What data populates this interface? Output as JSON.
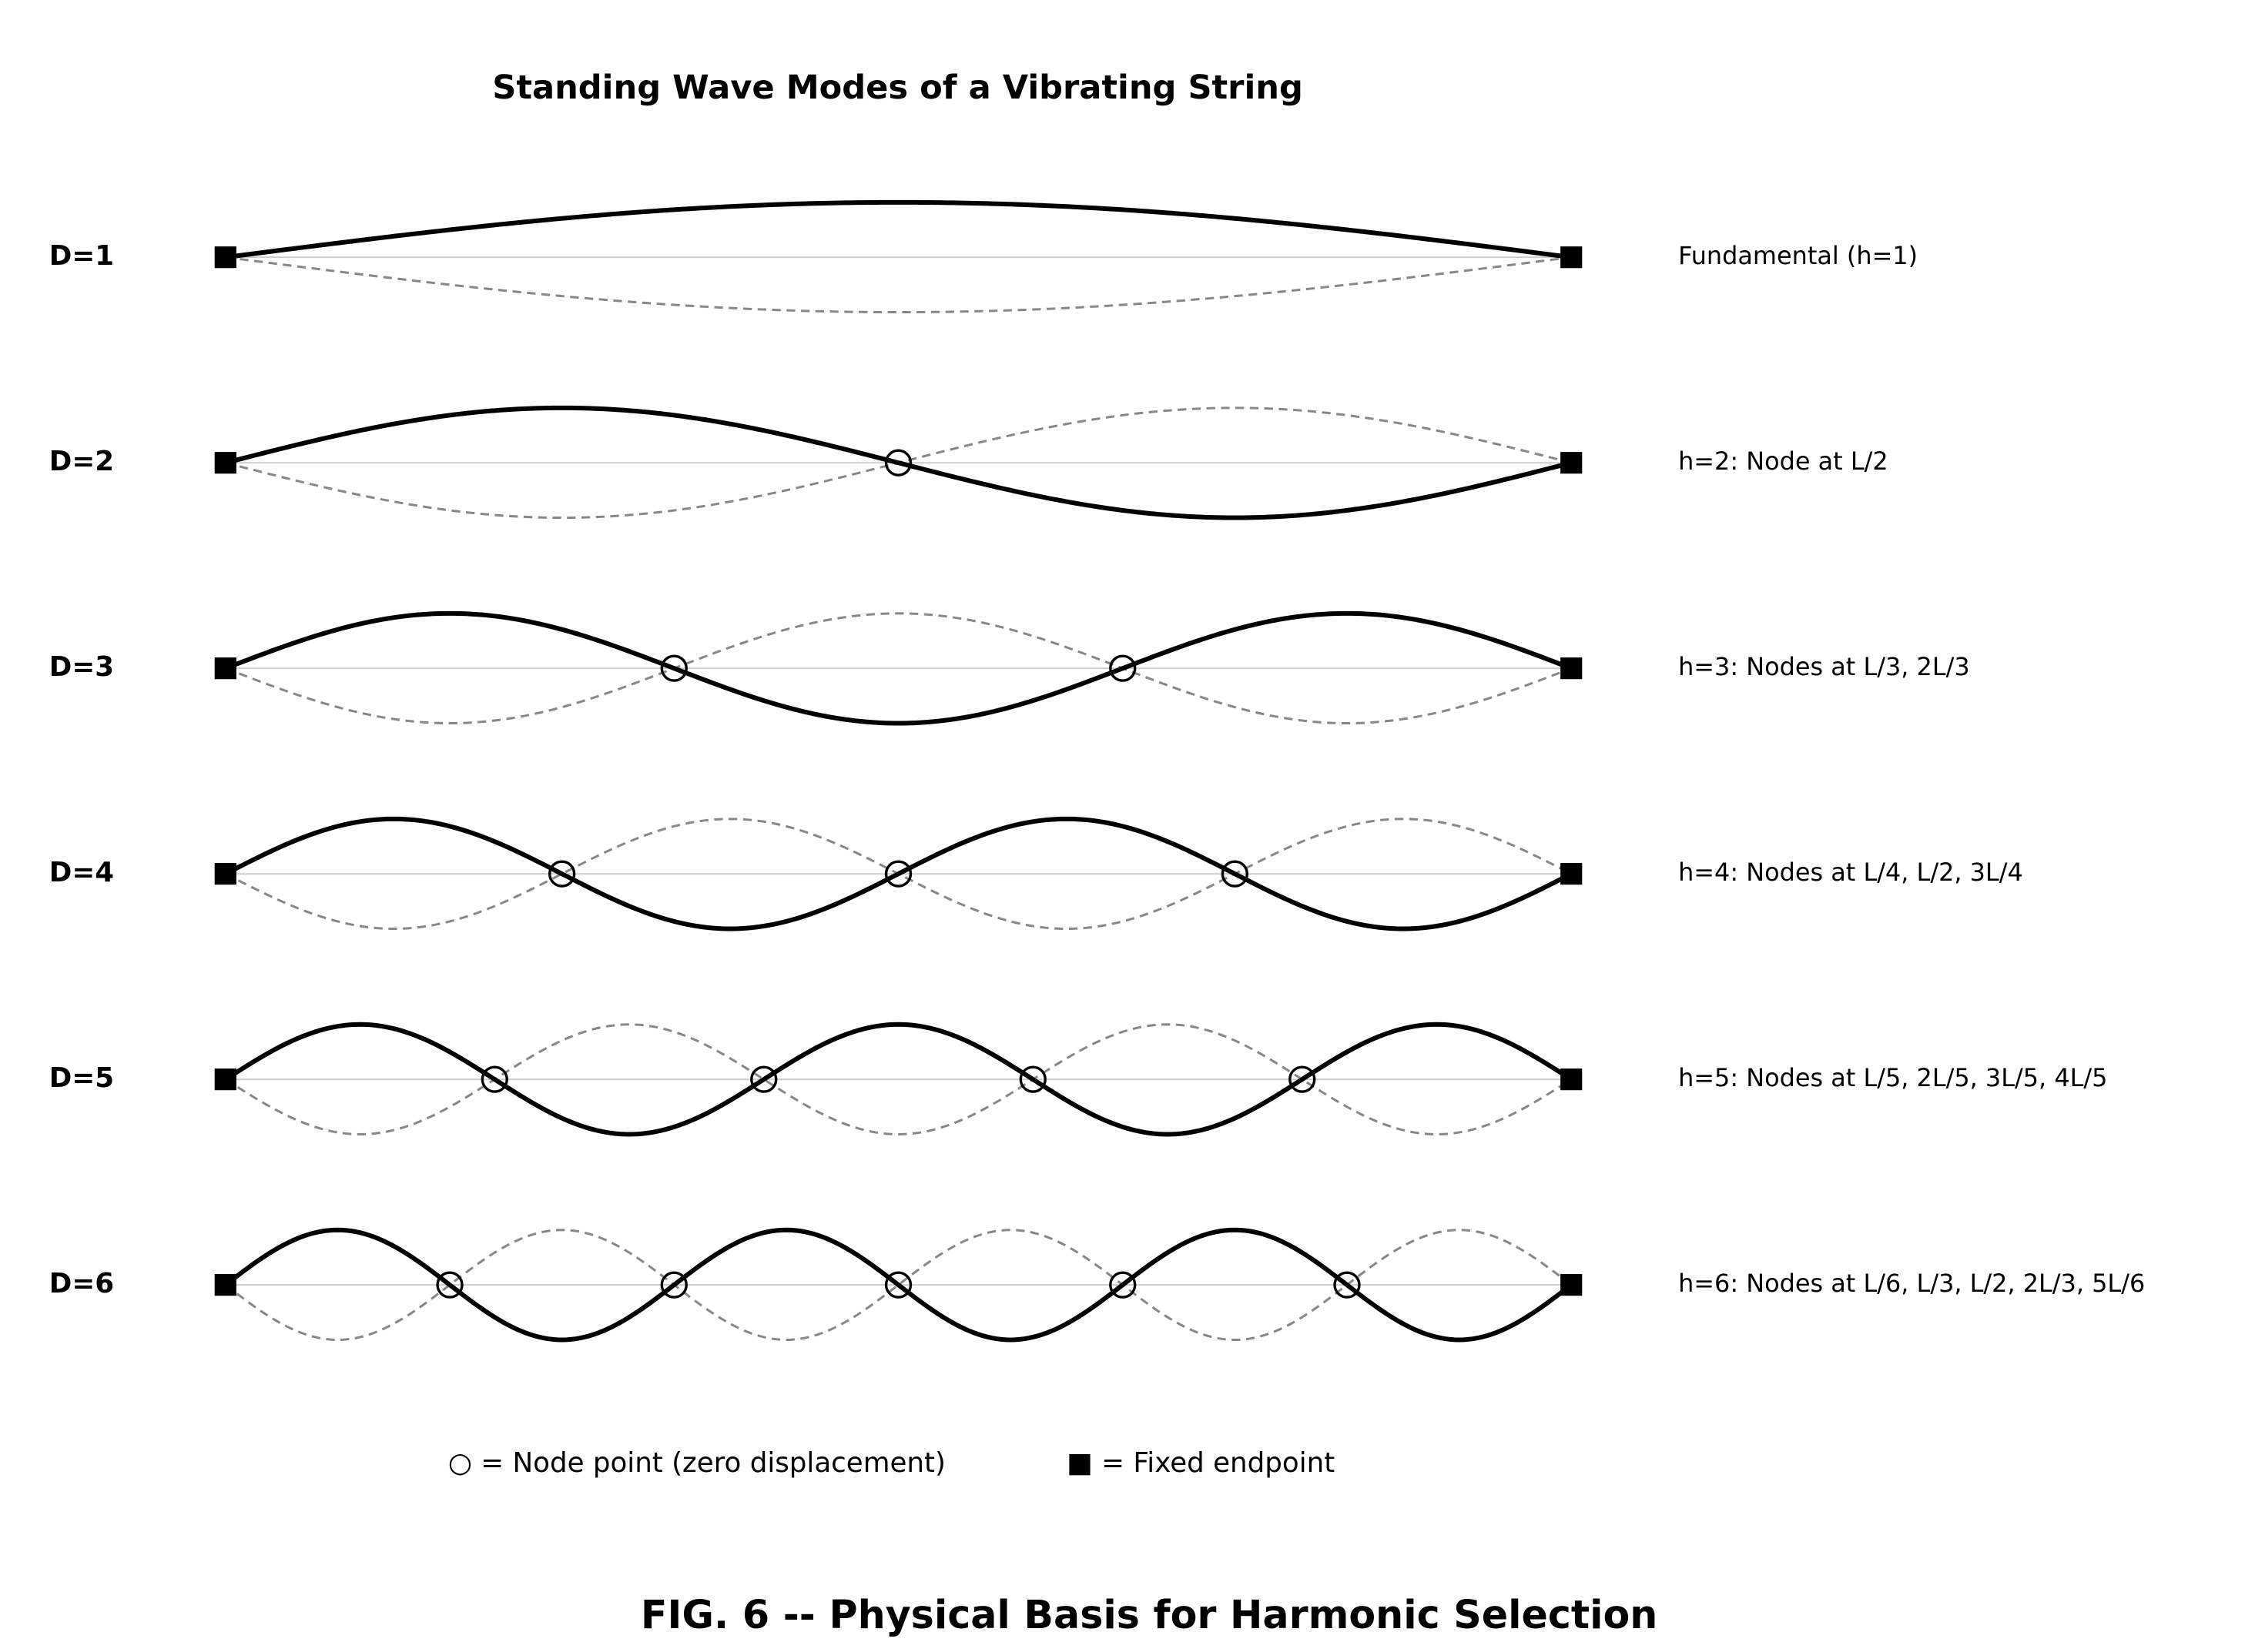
{
  "title": "Standing Wave Modes of a Vibrating String",
  "rows": [
    {
      "label": "D=1",
      "note": "Fundamental (h=1)"
    },
    {
      "label": "D=2",
      "note": "h=2: Node at L/2"
    },
    {
      "label": "D=3",
      "note": "h=3: Nodes at L/3, 2L/3"
    },
    {
      "label": "D=4",
      "note": "h=4: Nodes at L/4, L/2, 3L/4"
    },
    {
      "label": "D=5",
      "note": "h=5: Nodes at L/5, 2L/5, 3L/5, 4L/5"
    },
    {
      "label": "D=6",
      "note": "h=6: Nodes at L/6, L/3, L/2, 2L/3, 5L/6"
    }
  ],
  "legend": {
    "node": "○ = Node point (zero displacement)",
    "endpoint": "■ = Fixed endpoint"
  },
  "caption": "FIG. 6 -- Physical Basis for Harmonic Selection"
}
